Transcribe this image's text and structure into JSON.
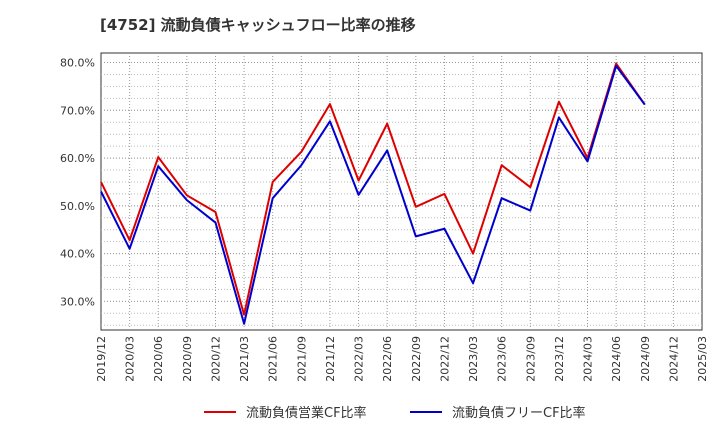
{
  "chart_data": {
    "type": "line",
    "title": "[4752]  流動負債キャッシュフロー比率の推移",
    "x": [
      "2019/12",
      "2020/03",
      "2020/06",
      "2020/09",
      "2020/12",
      "2021/03",
      "2021/06",
      "2021/09",
      "2021/12",
      "2022/03",
      "2022/06",
      "2022/09",
      "2022/12",
      "2023/03",
      "2023/06",
      "2023/09",
      "2023/12",
      "2024/03",
      "2024/06",
      "2024/09",
      "2024/12",
      "2025/03"
    ],
    "ylim": [
      24,
      82
    ],
    "yticks": [
      30,
      40,
      50,
      60,
      70,
      80
    ],
    "ytick_labels": [
      "30.0%",
      "40.0%",
      "50.0%",
      "60.0%",
      "70.0%",
      "80.0%"
    ],
    "grid": true,
    "legend_position": "bottom",
    "series": [
      {
        "name": "流動負債営業CF比率",
        "color": "#dd0000",
        "values": [
          55.0,
          42.8,
          60.2,
          52.2,
          48.7,
          27.2,
          55.0,
          61.3,
          71.3,
          55.3,
          67.2,
          49.8,
          52.5,
          40.0,
          58.5,
          53.9,
          71.8,
          60.0,
          79.8,
          71.2,
          null,
          null
        ]
      },
      {
        "name": "流動負債フリーCF比率",
        "color": "#0000cc",
        "values": [
          53.0,
          41.0,
          58.3,
          51.2,
          46.5,
          25.3,
          51.6,
          58.5,
          67.7,
          52.3,
          61.6,
          43.6,
          45.2,
          33.8,
          51.6,
          49.0,
          68.5,
          59.3,
          79.3,
          71.2,
          null,
          null
        ]
      }
    ]
  }
}
